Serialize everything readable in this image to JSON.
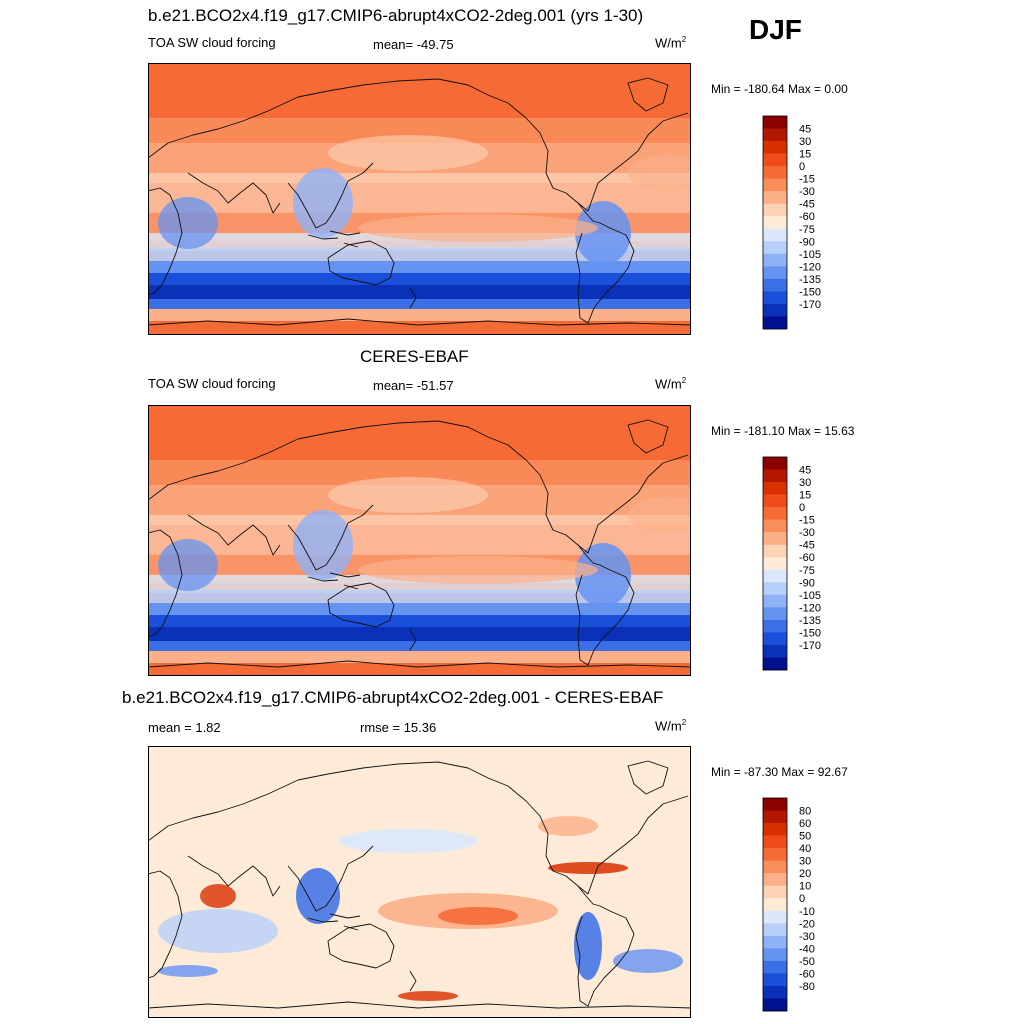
{
  "figure": {
    "season": "DJF",
    "panels": [
      {
        "title": "b.e21.BCO2x4.f19_g17.CMIP6-abrupt4xCO2-2deg.001 (yrs 1-30)",
        "variable": "TOA SW cloud forcing",
        "stat1": "mean= -49.75",
        "stat2": "",
        "units": "W/m",
        "units_sup": "2",
        "minmax": "Min = -180.64 Max =    0.00"
      },
      {
        "title": "CERES-EBAF",
        "variable": "TOA SW cloud forcing",
        "stat1": "mean= -51.57",
        "stat2": "",
        "units": "W/m",
        "units_sup": "2",
        "minmax": "Min = -181.10 Max =  15.63"
      },
      {
        "title": "b.e21.BCO2x4.f19_g17.CMIP6-abrupt4xCO2-2deg.001 - CERES-EBAF",
        "variable": "",
        "stat1": "mean =   1.82",
        "stat2": "rmse =  15.36",
        "units": "W/m",
        "units_sup": "2",
        "minmax": "Min = -87.30 Max =  92.67"
      }
    ]
  },
  "chart_data": [
    {
      "type": "heatmap",
      "title": "b.e21.BCO2x4.f19_g17.CMIP6-abrupt4xCO2-2deg.001 (yrs 1-30)",
      "variable": "TOA SW cloud forcing",
      "units": "W/m2",
      "mean": -49.75,
      "min": -180.64,
      "max": 0.0,
      "colorbar_labels": [
        "45",
        "30",
        "15",
        "0",
        "-15",
        "-30",
        "-45",
        "-60",
        "-75",
        "-90",
        "-105",
        "-120",
        "-135",
        "-150",
        "-170"
      ],
      "colorbar_colors": [
        "#8b0000",
        "#b31700",
        "#d93000",
        "#f04b1a",
        "#f56a35",
        "#f98e5c",
        "#fbb08a",
        "#fcd2b5",
        "#fdebd8",
        "#dbe8fb",
        "#b7d0fa",
        "#8fb2f7",
        "#6593f2",
        "#3a6fe8",
        "#1a4fd9",
        "#0a31b8",
        "#00108f"
      ],
      "lon_range": [
        0,
        360
      ],
      "lat_range": [
        -90,
        90
      ]
    },
    {
      "type": "heatmap",
      "title": "CERES-EBAF",
      "variable": "TOA SW cloud forcing",
      "units": "W/m2",
      "mean": -51.57,
      "min": -181.1,
      "max": 15.63,
      "colorbar_labels": [
        "45",
        "30",
        "15",
        "0",
        "-15",
        "-30",
        "-45",
        "-60",
        "-75",
        "-90",
        "-105",
        "-120",
        "-135",
        "-150",
        "-170"
      ],
      "colorbar_colors": [
        "#8b0000",
        "#b31700",
        "#d93000",
        "#f04b1a",
        "#f56a35",
        "#f98e5c",
        "#fbb08a",
        "#fcd2b5",
        "#fdebd8",
        "#dbe8fb",
        "#b7d0fa",
        "#8fb2f7",
        "#6593f2",
        "#3a6fe8",
        "#1a4fd9",
        "#0a31b8",
        "#00108f"
      ],
      "lon_range": [
        0,
        360
      ],
      "lat_range": [
        -90,
        90
      ]
    },
    {
      "type": "heatmap",
      "title": "b.e21.BCO2x4.f19_g17.CMIP6-abrupt4xCO2-2deg.001 - CERES-EBAF",
      "units": "W/m2",
      "mean": 1.82,
      "rmse": 15.36,
      "min": -87.3,
      "max": 92.67,
      "colorbar_labels": [
        "80",
        "60",
        "50",
        "40",
        "30",
        "20",
        "10",
        "0",
        "-10",
        "-20",
        "-30",
        "-40",
        "-50",
        "-60",
        "-80"
      ],
      "colorbar_colors": [
        "#8b0000",
        "#b31700",
        "#d93000",
        "#f04b1a",
        "#f56a35",
        "#f98e5c",
        "#fbb08a",
        "#fcd2b5",
        "#fdebd8",
        "#dbe8fb",
        "#b7d0fa",
        "#8fb2f7",
        "#6593f2",
        "#3a6fe8",
        "#1a4fd9",
        "#0a31b8",
        "#00108f"
      ],
      "lon_range": [
        0,
        360
      ],
      "lat_range": [
        -90,
        90
      ]
    }
  ]
}
